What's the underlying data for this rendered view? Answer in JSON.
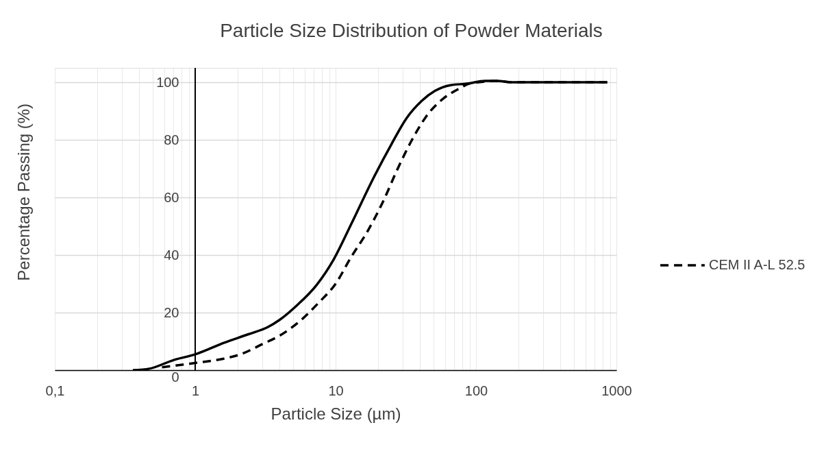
{
  "chart_data": {
    "type": "line",
    "title": "Particle Size Distribution of Powder Materials",
    "xlabel": "Particle Size (µm)",
    "ylabel": "Percentage Passing (%)",
    "series": [
      {
        "color": "#000000",
        "line_style": "solid",
        "x": [
          0.36,
          0.47,
          0.7,
          1,
          1.6,
          2.4,
          3.3,
          4,
          5.3,
          7.3,
          9.7,
          13,
          18.5,
          25,
          32,
          41,
          51,
          66,
          86,
          116,
          140,
          182,
          860
        ],
        "values": [
          0,
          0.5,
          3.5,
          5.5,
          9.5,
          12.5,
          15,
          17.5,
          22.5,
          29.5,
          38.5,
          51,
          66.5,
          78.5,
          87.5,
          93.5,
          97,
          99,
          99.5,
          100.5,
          100.5,
          100,
          100
        ]
      },
      {
        "name": "CEM II A-L 52.5",
        "color": "#000000",
        "line_style": "dashed",
        "x": [
          0.58,
          1,
          1.6,
          2.1,
          3,
          4,
          5.7,
          7.6,
          10,
          12.8,
          17,
          21.5,
          28,
          35,
          44,
          59,
          74,
          89,
          104,
          140,
          182,
          860
        ],
        "values": [
          1,
          2.5,
          4,
          5.5,
          9,
          12,
          17.5,
          23.5,
          30,
          39,
          48.5,
          58,
          70.5,
          80,
          88,
          94.5,
          97.5,
          99.5,
          100,
          100.5,
          100,
          100
        ]
      }
    ],
    "xlim": [
      0.1,
      1000
    ],
    "xticks": [
      {
        "value": 0.1,
        "label": "0,1"
      },
      {
        "value": 0.2,
        "label": null
      },
      {
        "value": 0.3,
        "label": null
      },
      {
        "value": 0.4,
        "label": null
      },
      {
        "value": 0.5,
        "label": null
      },
      {
        "value": 0.6,
        "label": null
      },
      {
        "value": 0.7,
        "label": null
      },
      {
        "value": 0.8,
        "label": null
      },
      {
        "value": 0.9,
        "label": null
      },
      1,
      {
        "value": 2,
        "label": null
      },
      {
        "value": 3,
        "label": null
      },
      {
        "value": 4,
        "label": null
      },
      {
        "value": 5,
        "label": null
      },
      {
        "value": 6,
        "label": null
      },
      {
        "value": 7,
        "label": null
      },
      {
        "value": 8,
        "label": null
      },
      {
        "value": 9,
        "label": null
      },
      10,
      {
        "value": 20,
        "label": null
      },
      {
        "value": 30,
        "label": null
      },
      {
        "value": 40,
        "label": null
      },
      {
        "value": 50,
        "label": null
      },
      {
        "value": 60,
        "label": null
      },
      {
        "value": 70,
        "label": null
      },
      {
        "value": 80,
        "label": null
      },
      {
        "value": 90,
        "label": null
      },
      100,
      {
        "value": 200,
        "label": null
      },
      {
        "value": 300,
        "label": null
      },
      {
        "value": 400,
        "label": null
      },
      {
        "value": 500,
        "label": null
      },
      {
        "value": 600,
        "label": null
      },
      {
        "value": 700,
        "label": null
      },
      {
        "value": 800,
        "label": null
      },
      {
        "value": 900,
        "label": null
      },
      1000
    ],
    "ylim": [
      0,
      105
    ],
    "yticks": [
      0,
      20,
      40,
      60,
      80,
      100
    ],
    "log": "x",
    "grid": true,
    "legend": "right",
    "ref_lines": [
      {
        "axis": "x",
        "value": 1,
        "color": "#000000"
      }
    ]
  }
}
